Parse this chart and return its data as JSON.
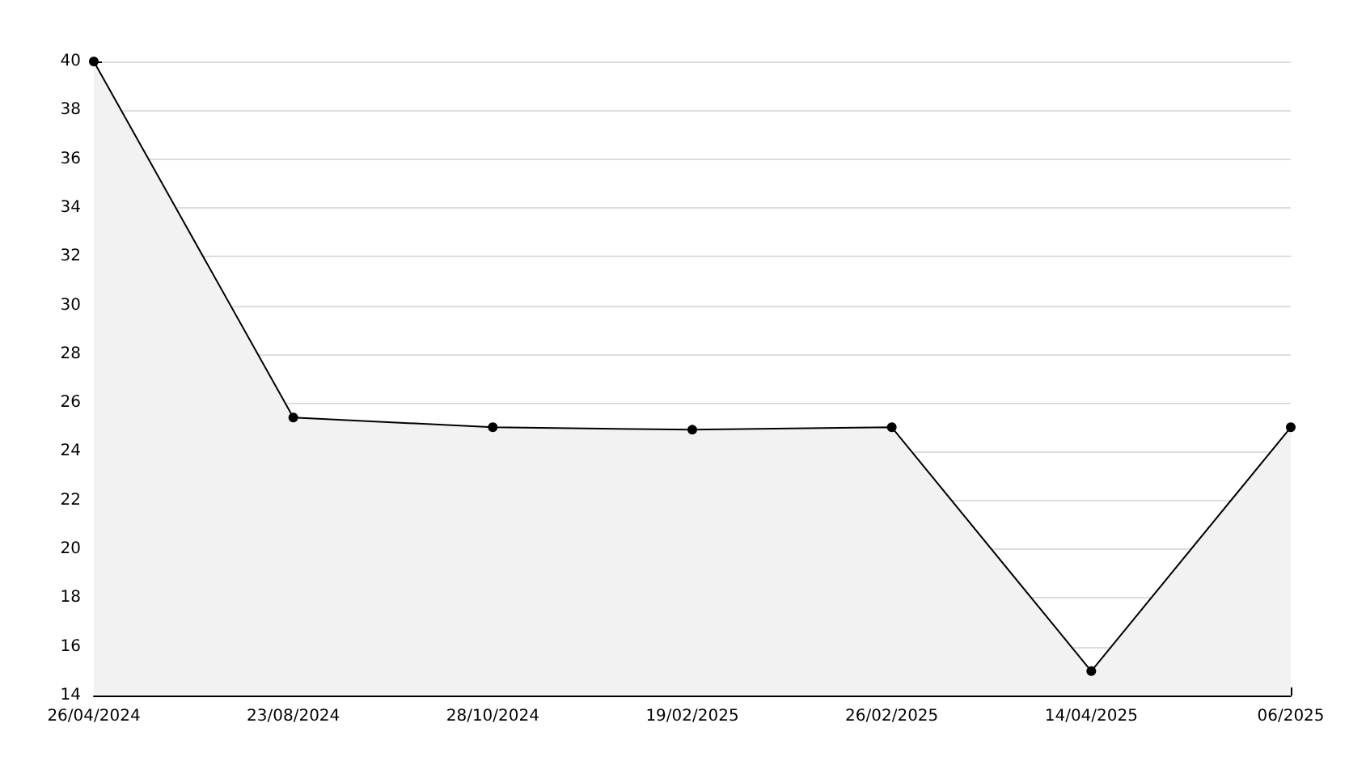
{
  "chart_data": {
    "type": "area",
    "categories": [
      "26/04/2024",
      "23/08/2024",
      "28/10/2024",
      "19/02/2025",
      "26/02/2025",
      "14/04/2025",
      "06/2025"
    ],
    "series": [
      {
        "color": "#000000",
        "values": [
          40,
          25.4,
          25.0,
          24.9,
          25.0,
          15.0,
          25.0
        ]
      }
    ],
    "ylim": [
      14,
      40
    ],
    "yticks": [
      14,
      16,
      18,
      20,
      22,
      24,
      26,
      28,
      30,
      32,
      34,
      36,
      38,
      40
    ],
    "grid": "y",
    "marker": "circle",
    "line_style": "solid"
  }
}
